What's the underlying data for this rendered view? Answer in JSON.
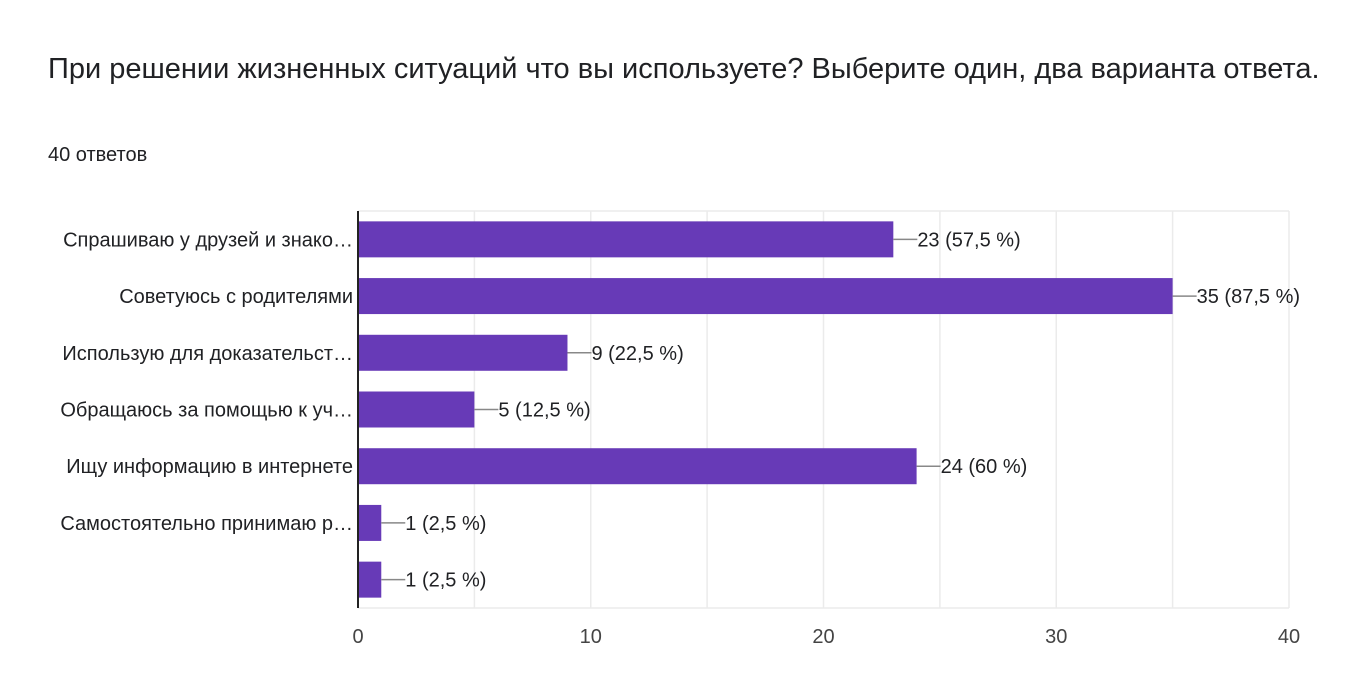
{
  "title": "При решении жизненных ситуаций что вы используете?  Выберите один, два  варианта ответа.",
  "subtitle": "40 ответов",
  "colors": {
    "bar": "#673ab7",
    "grid": "#ebebeb",
    "axis": "#222222",
    "leader": "#888888"
  },
  "chart_data": {
    "type": "bar",
    "orientation": "horizontal",
    "categories": [
      "Спрашиваю у друзей и знако…",
      "Советуюсь с родителями",
      "Использую для доказательст…",
      "Обращаюсь за помощью к уч…",
      "Ищу информацию в интернете",
      "Самостоятельно принимаю р…",
      ""
    ],
    "values": [
      23,
      35,
      9,
      5,
      24,
      1,
      1
    ],
    "value_labels": [
      "23 (57,5 %)",
      "35 (87,5 %)",
      "9 (22,5 %)",
      "5 (12,5 %)",
      "24 (60 %)",
      "1 (2,5 %)",
      "1 (2,5 %)"
    ],
    "xlim": [
      0,
      40
    ],
    "xticks": [
      0,
      10,
      20,
      30,
      40
    ],
    "grid": true,
    "legend": "none"
  }
}
